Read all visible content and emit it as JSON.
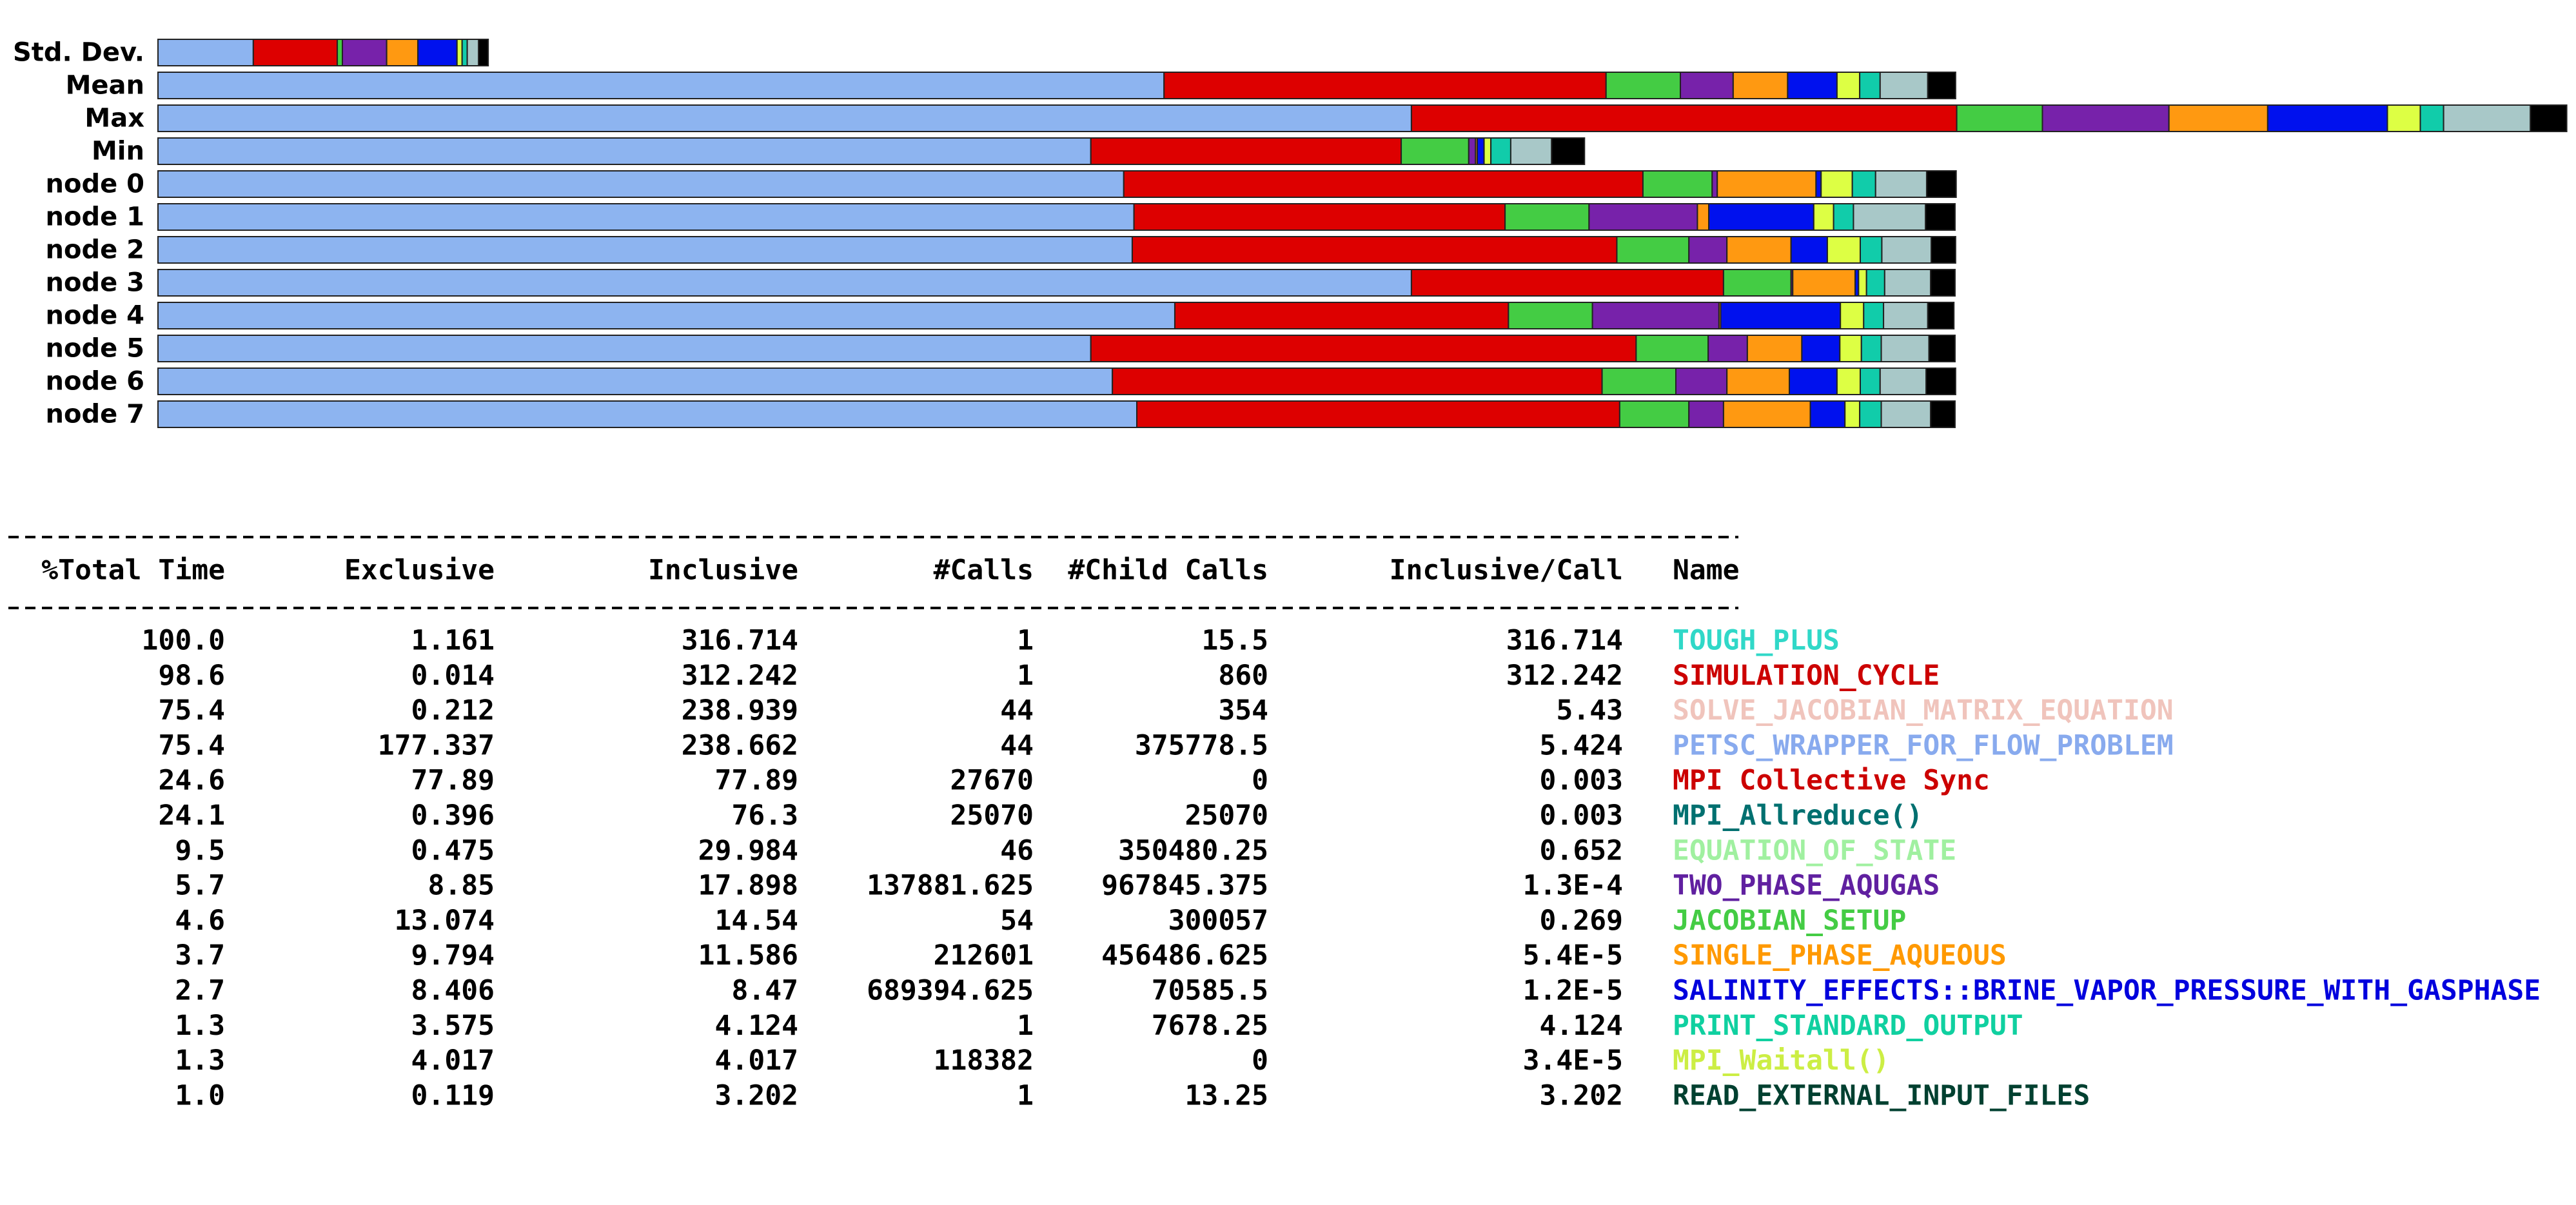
{
  "chart_data": {
    "type": "stacked-hbar",
    "categories": [
      "Std. Dev.",
      "Mean",
      "Max",
      "Min",
      "node 0",
      "node 1",
      "node 2",
      "node 3",
      "node 4",
      "node 5",
      "node 6",
      "node 7"
    ],
    "series": [
      {
        "color": "#8db4f0",
        "values": [
          16.8,
          177.3,
          220.9,
          164.4,
          170.2,
          172.0,
          171.7,
          220.9,
          179.2,
          164.4,
          168.2,
          172.5
        ]
      },
      {
        "color": "#dd0000",
        "values": [
          14.8,
          77.9,
          96.1,
          54.7,
          91.5,
          65.4,
          85.4,
          55.0,
          58.8,
          96.1,
          86.3,
          85.1
        ]
      },
      {
        "color": "#44cc44",
        "values": [
          0.9,
          13.1,
          15.1,
          11.9,
          12.2,
          14.8,
          12.7,
          11.9,
          14.8,
          12.7,
          13.0,
          12.2
        ]
      },
      {
        "color": "#7722aa",
        "values": [
          7.8,
          9.3,
          22.3,
          1.2,
          0.9,
          19.1,
          6.7,
          0.3,
          22.3,
          6.9,
          9.0,
          6.1
        ]
      },
      {
        "color": "#ff9911",
        "values": [
          5.5,
          9.6,
          17.4,
          0.3,
          17.4,
          2.0,
          11.3,
          11.0,
          0.3,
          9.6,
          11.0,
          15.3
        ]
      },
      {
        "color": "#0011ee",
        "values": [
          6.9,
          8.7,
          21.1,
          1.2,
          0.9,
          18.5,
          6.4,
          0.6,
          21.1,
          6.7,
          8.4,
          6.1
        ]
      },
      {
        "color": "#ddff44",
        "values": [
          0.9,
          4.0,
          5.8,
          1.2,
          5.5,
          3.5,
          5.8,
          1.4,
          4.1,
          3.8,
          4.1,
          2.6
        ]
      },
      {
        "color": "#11ccaa",
        "values": [
          0.9,
          3.6,
          4.1,
          3.5,
          4.1,
          3.5,
          3.8,
          3.2,
          3.5,
          3.5,
          3.5,
          3.8
        ]
      },
      {
        "color": "#a8c8c8",
        "values": [
          2.0,
          8.4,
          15.3,
          7.2,
          9.0,
          12.7,
          8.7,
          8.1,
          7.8,
          8.4,
          8.1,
          8.7
        ]
      },
      {
        "color": "#000000",
        "values": [
          1.7,
          4.9,
          6.4,
          5.8,
          5.2,
          5.2,
          4.3,
          4.3,
          4.6,
          4.6,
          5.2,
          4.3
        ]
      }
    ]
  },
  "table": {
    "headers": [
      "%Total Time",
      "Exclusive",
      "Inclusive",
      "#Calls",
      "#Child Calls",
      "Inclusive/Call",
      "Name"
    ],
    "rows": [
      [
        "100.0",
        "1.161",
        "316.714",
        "1",
        "15.5",
        "316.714",
        "TOUGH_PLUS"
      ],
      [
        "98.6",
        "0.014",
        "312.242",
        "1",
        "860",
        "312.242",
        "SIMULATION_CYCLE"
      ],
      [
        "75.4",
        "0.212",
        "238.939",
        "44",
        "354",
        "5.43",
        "SOLVE_JACOBIAN_MATRIX_EQUATION"
      ],
      [
        "75.4",
        "177.337",
        "238.662",
        "44",
        "375778.5",
        "5.424",
        "PETSC_WRAPPER_FOR_FLOW_PROBLEM"
      ],
      [
        "24.6",
        "77.89",
        "77.89",
        "27670",
        "0",
        "0.003",
        "MPI Collective Sync"
      ],
      [
        "24.1",
        "0.396",
        "76.3",
        "25070",
        "25070",
        "0.003",
        "MPI_Allreduce()"
      ],
      [
        "9.5",
        "0.475",
        "29.984",
        "46",
        "350480.25",
        "0.652",
        "EQUATION_OF_STATE"
      ],
      [
        "5.7",
        "8.85",
        "17.898",
        "137881.625",
        "967845.375",
        "1.3E-4",
        "TWO_PHASE_AQUGAS"
      ],
      [
        "4.6",
        "13.074",
        "14.54",
        "54",
        "300057",
        "0.269",
        "JACOBIAN_SETUP"
      ],
      [
        "3.7",
        "9.794",
        "11.586",
        "212601",
        "456486.625",
        "5.4E-5",
        "SINGLE_PHASE_AQUEOUS"
      ],
      [
        "2.7",
        "8.406",
        "8.47",
        "689394.625",
        "70585.5",
        "1.2E-5",
        "SALINITY_EFFECTS::BRINE_VAPOR_PRESSURE_WITH_GASPHASE"
      ],
      [
        "1.3",
        "3.575",
        "4.124",
        "1",
        "7678.25",
        "4.124",
        "PRINT_STANDARD_OUTPUT"
      ],
      [
        "1.3",
        "4.017",
        "4.017",
        "118382",
        "0",
        "3.4E-5",
        "MPI_Waitall()"
      ],
      [
        "1.0",
        "0.119",
        "3.202",
        "1",
        "13.25",
        "3.202",
        "READ_EXTERNAL_INPUT_FILES"
      ]
    ],
    "name_colors": [
      "#30d8c8",
      "#cc0000",
      "#f0c4bc",
      "#88aaee",
      "#cc0000",
      "#007070",
      "#a0f0a0",
      "#6020a0",
      "#44cc44",
      "#ff9900",
      "#0000dd",
      "#10d0a0",
      "#ccee44",
      "#004030"
    ]
  }
}
